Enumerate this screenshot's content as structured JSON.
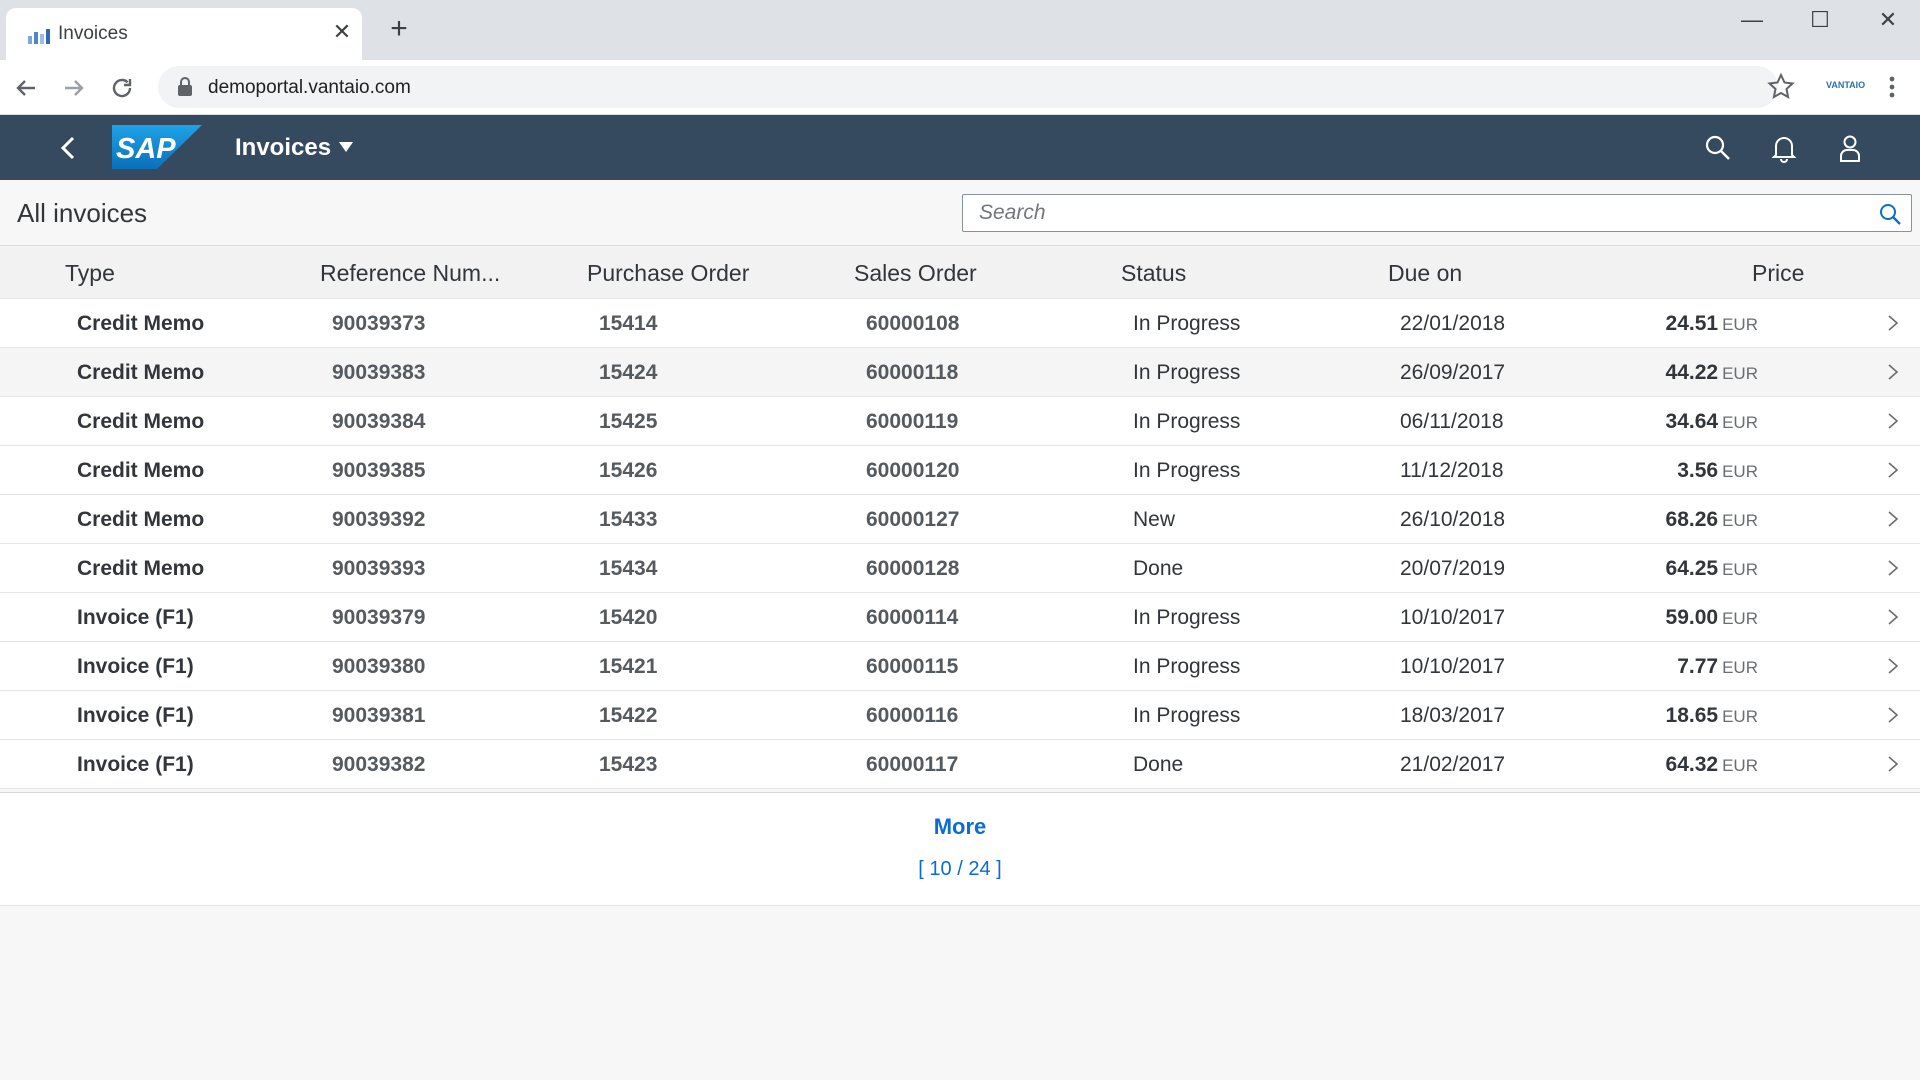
{
  "browser": {
    "tab_title": "Invoices",
    "tab_close": "✕",
    "new_tab": "+",
    "url": "demoportal.vantaio.com",
    "extension_label": "VANTAIO",
    "window_controls": {
      "minimize": "—",
      "maximize": "☐",
      "close": "✕"
    }
  },
  "shell": {
    "logo_text": "SAP",
    "title": "Invoices",
    "colors": {
      "shell_bg": "#354a5f",
      "logo_blue": "#1a8fd6",
      "accent": "#0a6ed1"
    }
  },
  "page": {
    "title": "All invoices",
    "search_placeholder": "Search"
  },
  "table": {
    "columns": [
      "Type",
      "Reference Num...",
      "Purchase Order",
      "Sales Order",
      "Status",
      "Due on",
      "Price"
    ],
    "rows": [
      {
        "type": "Credit Memo",
        "ref": "90039373",
        "po": "15414",
        "so": "60000108",
        "status": "In Progress",
        "due": "22/01/2018",
        "amount": "24.51",
        "currency": "EUR"
      },
      {
        "type": "Credit Memo",
        "ref": "90039383",
        "po": "15424",
        "so": "60000118",
        "status": "In Progress",
        "due": "26/09/2017",
        "amount": "44.22",
        "currency": "EUR"
      },
      {
        "type": "Credit Memo",
        "ref": "90039384",
        "po": "15425",
        "so": "60000119",
        "status": "In Progress",
        "due": "06/11/2018",
        "amount": "34.64",
        "currency": "EUR"
      },
      {
        "type": "Credit Memo",
        "ref": "90039385",
        "po": "15426",
        "so": "60000120",
        "status": "In Progress",
        "due": "11/12/2018",
        "amount": "3.56",
        "currency": "EUR"
      },
      {
        "type": "Credit Memo",
        "ref": "90039392",
        "po": "15433",
        "so": "60000127",
        "status": "New",
        "due": "26/10/2018",
        "amount": "68.26",
        "currency": "EUR"
      },
      {
        "type": "Credit Memo",
        "ref": "90039393",
        "po": "15434",
        "so": "60000128",
        "status": "Done",
        "due": "20/07/2019",
        "amount": "64.25",
        "currency": "EUR"
      },
      {
        "type": "Invoice (F1)",
        "ref": "90039379",
        "po": "15420",
        "so": "60000114",
        "status": "In Progress",
        "due": "10/10/2017",
        "amount": "59.00",
        "currency": "EUR"
      },
      {
        "type": "Invoice (F1)",
        "ref": "90039380",
        "po": "15421",
        "so": "60000115",
        "status": "In Progress",
        "due": "10/10/2017",
        "amount": "7.77",
        "currency": "EUR"
      },
      {
        "type": "Invoice (F1)",
        "ref": "90039381",
        "po": "15422",
        "so": "60000116",
        "status": "In Progress",
        "due": "18/03/2017",
        "amount": "18.65",
        "currency": "EUR"
      },
      {
        "type": "Invoice (F1)",
        "ref": "90039382",
        "po": "15423",
        "so": "60000117",
        "status": "Done",
        "due": "21/02/2017",
        "amount": "64.32",
        "currency": "EUR"
      }
    ],
    "more_label": "More",
    "count_label": "[ 10 / 24 ]"
  }
}
